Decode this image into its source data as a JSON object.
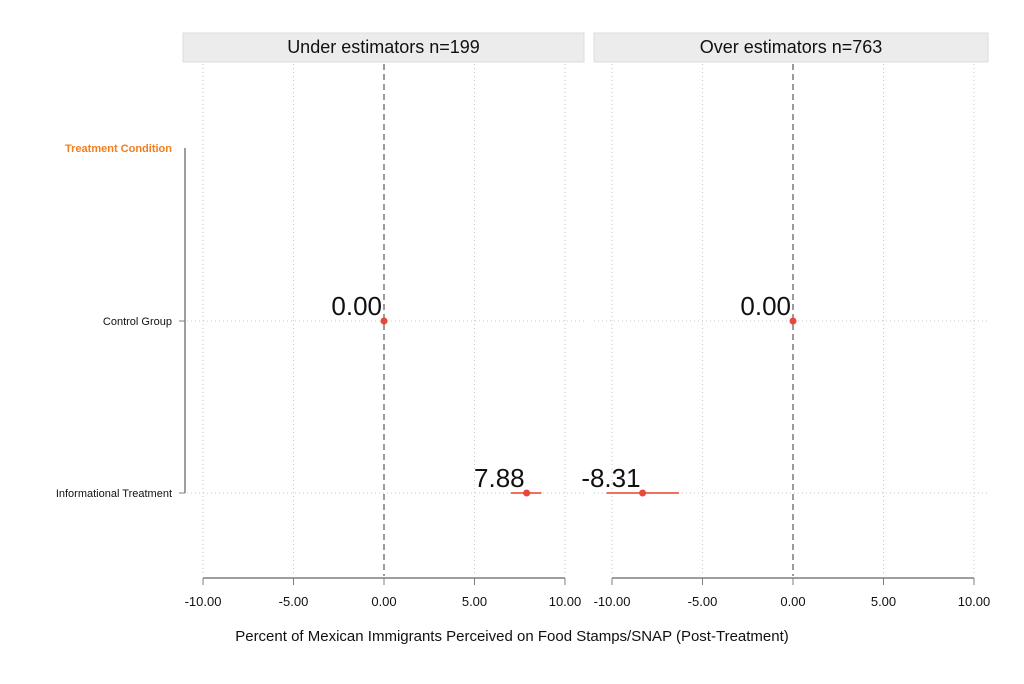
{
  "colors": {
    "point": "#e8473a",
    "ci": "#f07060",
    "header_accent": "#f07f20"
  },
  "chart_data": {
    "type": "scatter",
    "subtype": "coefficient-plot-with-confidence-intervals",
    "xlabel": "Percent of Mexican Immigrants Perceived on Food Stamps/SNAP (Post-Treatment)",
    "y_header": "Treatment Condition",
    "categories": [
      "Control Group",
      "Informational Treatment"
    ],
    "xlim": [
      -10,
      10
    ],
    "x_ticks": [
      -10,
      -5,
      0,
      5,
      10
    ],
    "x_tick_labels": [
      "-10.00",
      "-5.00",
      "0.00",
      "5.00",
      "10.00"
    ],
    "grid": true,
    "reference_line": 0,
    "panels": [
      {
        "title": "Under estimators n=199",
        "points": [
          {
            "category": "Control Group",
            "value": 0.0,
            "ci_low": 0.0,
            "ci_high": 0.0,
            "label": "0.00"
          },
          {
            "category": "Informational Treatment",
            "value": 7.88,
            "ci_low": 7.0,
            "ci_high": 8.7,
            "label": "7.88"
          }
        ]
      },
      {
        "title": "Over estimators n=763",
        "points": [
          {
            "category": "Control Group",
            "value": 0.0,
            "ci_low": 0.0,
            "ci_high": 0.0,
            "label": "0.00"
          },
          {
            "category": "Informational Treatment",
            "value": -8.31,
            "ci_low": -10.3,
            "ci_high": -6.3,
            "label": "-8.31"
          }
        ]
      }
    ]
  }
}
